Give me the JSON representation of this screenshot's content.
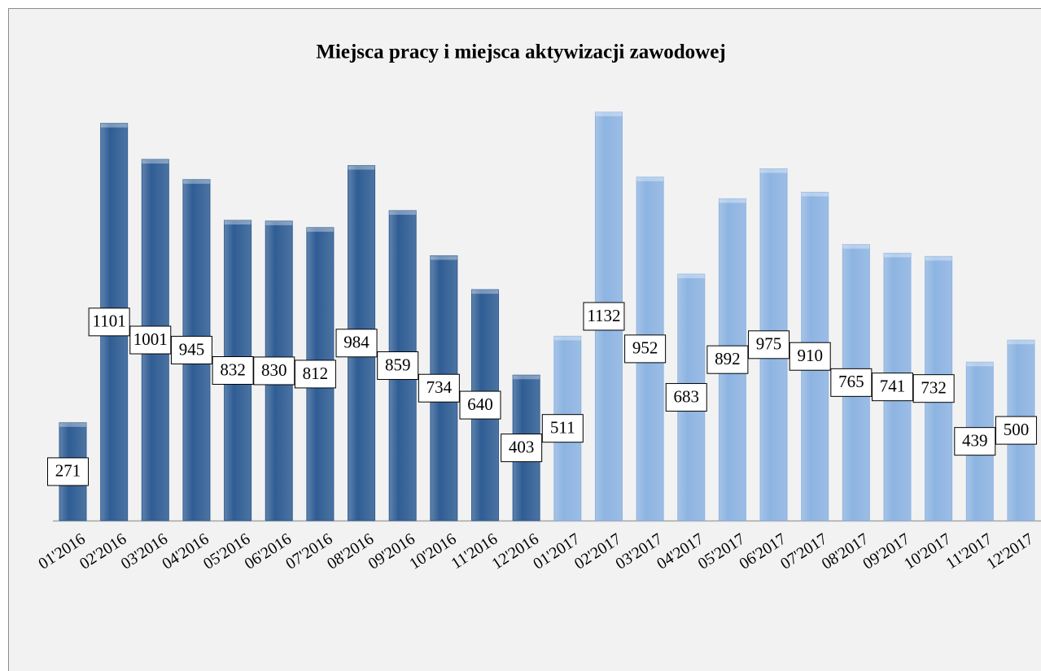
{
  "chart_data": {
    "type": "bar",
    "title": "Miejsca pracy i miejsca aktywizacji zawodowej",
    "categories": [
      "01'2016",
      "02'2016",
      "03'2016",
      "04'2016",
      "05'2016",
      "06'2016",
      "07'2016",
      "08'2016",
      "09'2016",
      "10'2016",
      "11'2016",
      "12'2016",
      "01'2017",
      "02'2017",
      "03'2017",
      "04'2017",
      "05'2017",
      "06'2017",
      "07'2017",
      "08'2017",
      "09'2017",
      "10'2017",
      "11'2017",
      "12'2017"
    ],
    "values": [
      271,
      1101,
      1001,
      945,
      832,
      830,
      812,
      984,
      859,
      734,
      640,
      403,
      511,
      1132,
      952,
      683,
      892,
      975,
      910,
      765,
      741,
      732,
      439,
      500
    ],
    "colors": [
      "#2f5d94",
      "#2f5d94",
      "#2f5d94",
      "#2f5d94",
      "#2f5d94",
      "#2f5d94",
      "#2f5d94",
      "#2f5d94",
      "#2f5d94",
      "#2f5d94",
      "#2f5d94",
      "#2f5d94",
      "#8db4e2",
      "#8db4e2",
      "#8db4e2",
      "#8db4e2",
      "#8db4e2",
      "#8db4e2",
      "#8db4e2",
      "#8db4e2",
      "#8db4e2",
      "#8db4e2",
      "#8db4e2",
      "#8db4e2"
    ],
    "ylim": [
      0,
      1200
    ]
  }
}
